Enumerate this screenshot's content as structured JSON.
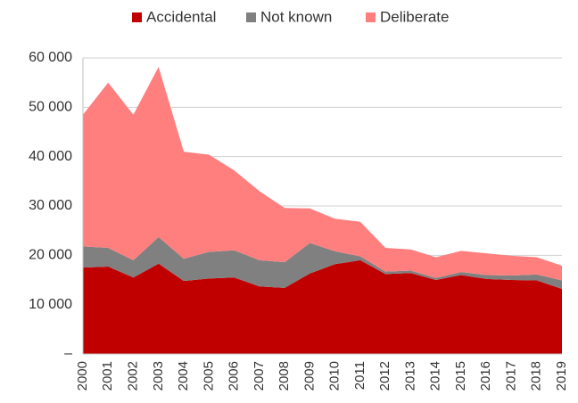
{
  "chart_data": {
    "type": "stacked_area",
    "categories": [
      "2000",
      "2001",
      "2002",
      "2003",
      "2004",
      "2005",
      "2006",
      "2007",
      "2008",
      "2009",
      "2010",
      "2011",
      "2012",
      "2013",
      "2014",
      "2015",
      "2016",
      "2017",
      "2018",
      "2019"
    ],
    "series": [
      {
        "name": "Accidental",
        "color": "#c00000",
        "values": [
          17500,
          17700,
          15500,
          18300,
          14800,
          15300,
          15500,
          13700,
          13400,
          16300,
          18200,
          19000,
          16200,
          16400,
          15000,
          16000,
          15200,
          15000,
          14900,
          13200
        ]
      },
      {
        "name": "Not known",
        "color": "#808080",
        "values": [
          4300,
          3800,
          3500,
          5400,
          4500,
          5400,
          5500,
          5300,
          5200,
          6200,
          2600,
          800,
          500,
          500,
          400,
          600,
          800,
          900,
          1200,
          1700
        ]
      },
      {
        "name": "Deliberate",
        "color": "#ff7f7f",
        "values": [
          26700,
          33500,
          29500,
          34500,
          21700,
          19700,
          16200,
          14000,
          11000,
          7000,
          6600,
          7000,
          4800,
          4300,
          4200,
          4300,
          4400,
          4000,
          3500,
          3000
        ]
      }
    ],
    "ylim": [
      0,
      60000
    ],
    "yticks": [
      {
        "value": 0,
        "label": "–"
      },
      {
        "value": 10000,
        "label": "10 000"
      },
      {
        "value": 20000,
        "label": "20 000"
      },
      {
        "value": 30000,
        "label": "30 000"
      },
      {
        "value": 40000,
        "label": "40 000"
      },
      {
        "value": 50000,
        "label": "50 000"
      },
      {
        "value": 60000,
        "label": "60 000"
      }
    ],
    "grid": true,
    "legend": "top"
  }
}
